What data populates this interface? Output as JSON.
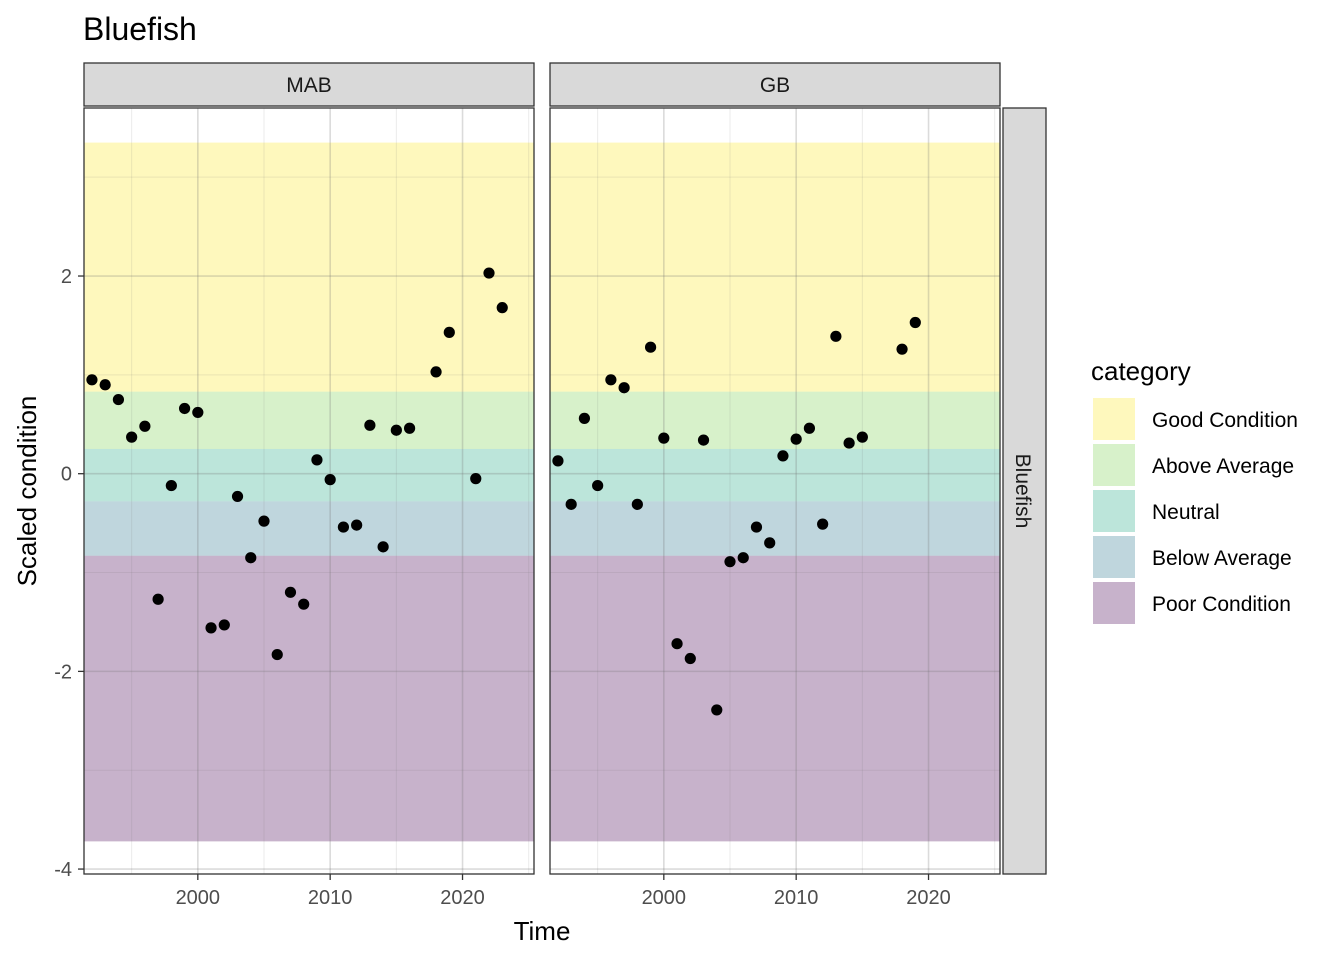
{
  "chart_data": {
    "type": "scatter",
    "title": "Bluefish",
    "xlabel": "Time",
    "ylabel": "Scaled condition",
    "xlim": [
      1991.4,
      2025.4
    ],
    "ylim": [
      -4.05,
      3.7
    ],
    "x_ticks": [
      2000,
      2010,
      2020
    ],
    "y_ticks": [
      -4,
      -2,
      0,
      2
    ],
    "row_strip": "Bluefish",
    "grid": true,
    "legend_position": "right",
    "legend": {
      "title": "category",
      "entries": [
        {
          "label": "Good Condition",
          "color": "#FDE725",
          "min": 0.83,
          "max": 3.35
        },
        {
          "label": "Above Average",
          "color": "#7AD151",
          "min": 0.25,
          "max": 0.83
        },
        {
          "label": "Neutral",
          "color": "#22A884",
          "min": -0.28,
          "max": 0.25
        },
        {
          "label": "Below Average",
          "color": "#2A788E",
          "min": -0.83,
          "max": -0.28
        },
        {
          "label": "Poor Condition",
          "color": "#440154",
          "min": -3.72,
          "max": -0.83
        }
      ]
    },
    "panels": [
      {
        "name": "MAB",
        "points": [
          [
            1992,
            0.95
          ],
          [
            1993,
            0.9
          ],
          [
            1994,
            0.75
          ],
          [
            1995,
            0.37
          ],
          [
            1996,
            0.48
          ],
          [
            1997,
            -1.27
          ],
          [
            1998,
            -0.12
          ],
          [
            1999,
            0.66
          ],
          [
            2000,
            0.62
          ],
          [
            2001,
            -1.56
          ],
          [
            2002,
            -1.53
          ],
          [
            2003,
            -0.23
          ],
          [
            2004,
            -0.85
          ],
          [
            2005,
            -0.48
          ],
          [
            2006,
            -1.83
          ],
          [
            2007,
            -1.2
          ],
          [
            2008,
            -1.32
          ],
          [
            2009,
            0.14
          ],
          [
            2010,
            -0.06
          ],
          [
            2011,
            -0.54
          ],
          [
            2012,
            -0.52
          ],
          [
            2013,
            0.49
          ],
          [
            2014,
            -0.74
          ],
          [
            2015,
            0.44
          ],
          [
            2016,
            0.46
          ],
          [
            2018,
            1.03
          ],
          [
            2019,
            1.43
          ],
          [
            2021,
            -0.05
          ],
          [
            2022,
            2.03
          ],
          [
            2023,
            1.68
          ]
        ]
      },
      {
        "name": "GB",
        "points": [
          [
            1992,
            0.13
          ],
          [
            1993,
            -0.31
          ],
          [
            1994,
            0.56
          ],
          [
            1995,
            -0.12
          ],
          [
            1996,
            0.95
          ],
          [
            1997,
            0.87
          ],
          [
            1998,
            -0.31
          ],
          [
            1999,
            1.28
          ],
          [
            2000,
            0.36
          ],
          [
            2001,
            -1.72
          ],
          [
            2002,
            -1.87
          ],
          [
            2003,
            0.34
          ],
          [
            2004,
            -2.39
          ],
          [
            2005,
            -0.89
          ],
          [
            2006,
            -0.85
          ],
          [
            2007,
            -0.54
          ],
          [
            2008,
            -0.7
          ],
          [
            2009,
            0.18
          ],
          [
            2010,
            0.35
          ],
          [
            2011,
            0.46
          ],
          [
            2012,
            -0.51
          ],
          [
            2013,
            1.39
          ],
          [
            2014,
            0.31
          ],
          [
            2015,
            0.37
          ],
          [
            2018,
            1.26
          ],
          [
            2019,
            1.53
          ]
        ]
      }
    ]
  }
}
